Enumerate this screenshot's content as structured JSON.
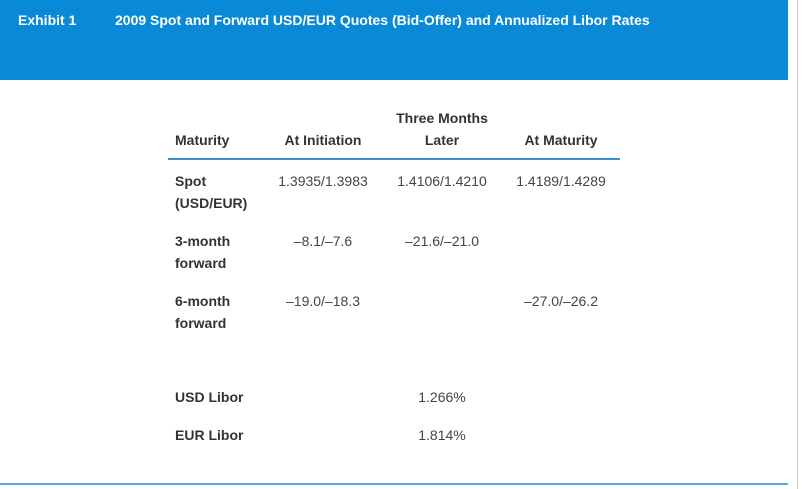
{
  "header": {
    "exhibit": "Exhibit 1",
    "title": "2009 Spot and Forward USD/EUR Quotes (Bid-Offer) and Annualized Libor Rates"
  },
  "table": {
    "columns": {
      "label": "Maturity",
      "initiation": "At Initiation",
      "three_months": "Three Months Later",
      "maturity": "At Maturity"
    },
    "rows": [
      {
        "label": "Spot (USD/EUR)",
        "initiation": "1.3935/1.3983",
        "three_months": "1.4106/1.4210",
        "maturity": "1.4189/1.4289"
      },
      {
        "label": "3-month forward",
        "initiation": "–8.1/–7.6",
        "three_months": "–21.6/–21.0"
      },
      {
        "label": "6-month forward",
        "initiation": "–19.0/–18.3",
        "maturity": "–27.0/–26.2"
      }
    ],
    "libor": [
      {
        "label": "USD Libor",
        "value": "1.266%"
      },
      {
        "label": "EUR Libor",
        "value": "1.814%"
      }
    ]
  }
}
